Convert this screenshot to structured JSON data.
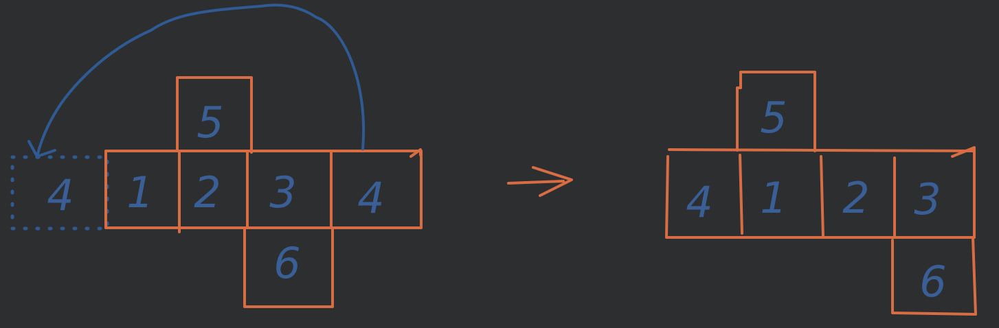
{
  "colors": {
    "background": "#2d2e30",
    "net_outline": "#d86d44",
    "annotation": "#2f5a93",
    "labels": "#3a5f97"
  },
  "left_net": {
    "ghost_face": "4",
    "top_face": "5",
    "row_faces": [
      "1",
      "2",
      "3",
      "4"
    ],
    "bottom_face": "6"
  },
  "transform_arrow": "arrow-right",
  "right_net": {
    "top_face": "5",
    "row_faces": [
      "4",
      "1",
      "2",
      "3"
    ],
    "bottom_face": "6"
  }
}
